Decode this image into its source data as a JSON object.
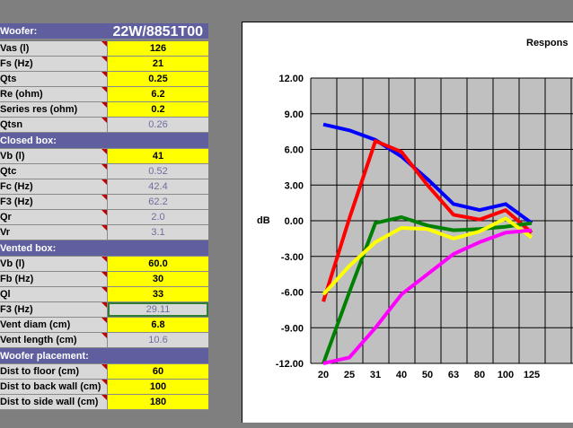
{
  "woofer_header": {
    "label": "Woofer:",
    "model": "22W/8851T00"
  },
  "woofer_params": [
    {
      "label": "Vas (l)",
      "value": "126",
      "kind": "input"
    },
    {
      "label": "Fs (Hz)",
      "value": "21",
      "kind": "input"
    },
    {
      "label": "Qts",
      "value": "0.25",
      "kind": "input"
    },
    {
      "label": "Re (ohm)",
      "value": "6.2",
      "kind": "input"
    },
    {
      "label": "Series res (ohm)",
      "value": "0.2",
      "kind": "input"
    },
    {
      "label": "Qtsn",
      "value": "0.26",
      "kind": "calc"
    }
  ],
  "closed_header": {
    "label": "Closed box:"
  },
  "closed_params": [
    {
      "label": "Vb (l)",
      "value": "41",
      "kind": "input"
    },
    {
      "label": "Qtc",
      "value": "0.52",
      "kind": "calc"
    },
    {
      "label": "Fc (Hz)",
      "value": "42.4",
      "kind": "calc"
    },
    {
      "label": "F3 (Hz)",
      "value": "62.2",
      "kind": "calc"
    },
    {
      "label": "Qr",
      "value": "2.0",
      "kind": "calc"
    },
    {
      "label": "Vr",
      "value": "3.1",
      "kind": "calc"
    }
  ],
  "vented_header": {
    "label": "Vented box:"
  },
  "vented_params": [
    {
      "label": "Vb (l)",
      "value": "60.0",
      "kind": "input"
    },
    {
      "label": "Fb (Hz)",
      "value": "30",
      "kind": "input"
    },
    {
      "label": "Ql",
      "value": "33",
      "kind": "input"
    },
    {
      "label": "F3 (Hz)",
      "value": "29.11",
      "kind": "selected"
    },
    {
      "label": "Vent diam (cm)",
      "value": "6.8",
      "kind": "input"
    },
    {
      "label": "Vent length (cm)",
      "value": "10.6",
      "kind": "calc"
    }
  ],
  "placement_header": {
    "label": "Woofer placement:"
  },
  "placement_params": [
    {
      "label": "Dist to floor (cm)",
      "value": "60",
      "kind": "input"
    },
    {
      "label": "Dist to back wall (cm)",
      "value": "100",
      "kind": "input"
    },
    {
      "label": "Dist to side wall (cm)",
      "value": "180",
      "kind": "input"
    }
  ],
  "chart_data": {
    "type": "line",
    "title": "Respons",
    "ylabel": "dB",
    "xlabel": "",
    "categories": [
      "20",
      "25",
      "31",
      "40",
      "50",
      "63",
      "80",
      "100",
      "125"
    ],
    "y_ticks": [
      "12.00",
      "9.00",
      "6.00",
      "3.00",
      "0.00",
      "-3.00",
      "-6.00",
      "-9.00",
      "-12.00"
    ],
    "ylim": [
      -12,
      12
    ],
    "grid": true,
    "series": [
      {
        "color": "#0000ff",
        "values": [
          8.1,
          7.6,
          6.8,
          5.4,
          3.5,
          1.4,
          0.9,
          1.4,
          -0.2
        ]
      },
      {
        "color": "#ff0000",
        "values": [
          -6.8,
          0.2,
          6.7,
          5.8,
          3.0,
          0.5,
          0.1,
          0.9,
          -1.0
        ]
      },
      {
        "color": "#008000",
        "values": [
          -12.5,
          -6.0,
          -0.2,
          0.3,
          -0.4,
          -0.8,
          -0.7,
          -0.5,
          -0.2
        ]
      },
      {
        "color": "#ffff00",
        "values": [
          -6.2,
          -3.8,
          -1.8,
          -0.6,
          -0.7,
          -1.5,
          -0.9,
          0.2,
          -1.4
        ]
      },
      {
        "color": "#ff00ff",
        "values": [
          -13.2,
          -11.5,
          -9.0,
          -6.2,
          -4.5,
          -2.8,
          -1.8,
          -1.0,
          -0.8
        ]
      }
    ]
  }
}
